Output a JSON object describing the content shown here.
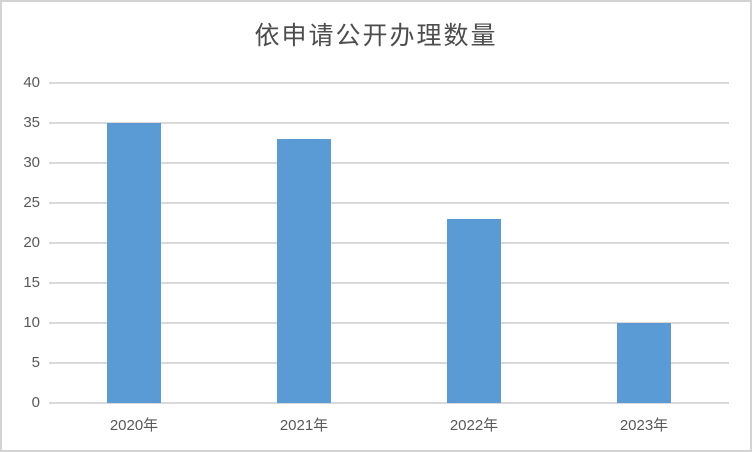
{
  "chart_data": {
    "type": "bar",
    "title": "依申请公开办理数量",
    "categories": [
      "2020年",
      "2021年",
      "2022年",
      "2023年"
    ],
    "values": [
      35,
      33,
      23,
      10
    ],
    "yticks": [
      "0",
      "5",
      "10",
      "15",
      "20",
      "25",
      "30",
      "35",
      "40"
    ],
    "ytick_values": [
      0,
      5,
      10,
      15,
      20,
      25,
      30,
      35,
      40
    ],
    "ylim": [
      0,
      40
    ],
    "xlabel": "",
    "ylabel": "",
    "grid": "horizontal",
    "legend": "none",
    "colors": {
      "bar": "#5b9bd5",
      "gridline": "#d9d9d9",
      "tick_text": "#595959",
      "title_text": "#4d4d4d",
      "frame_border": "#d3d3d3",
      "background": "#ffffff"
    }
  }
}
